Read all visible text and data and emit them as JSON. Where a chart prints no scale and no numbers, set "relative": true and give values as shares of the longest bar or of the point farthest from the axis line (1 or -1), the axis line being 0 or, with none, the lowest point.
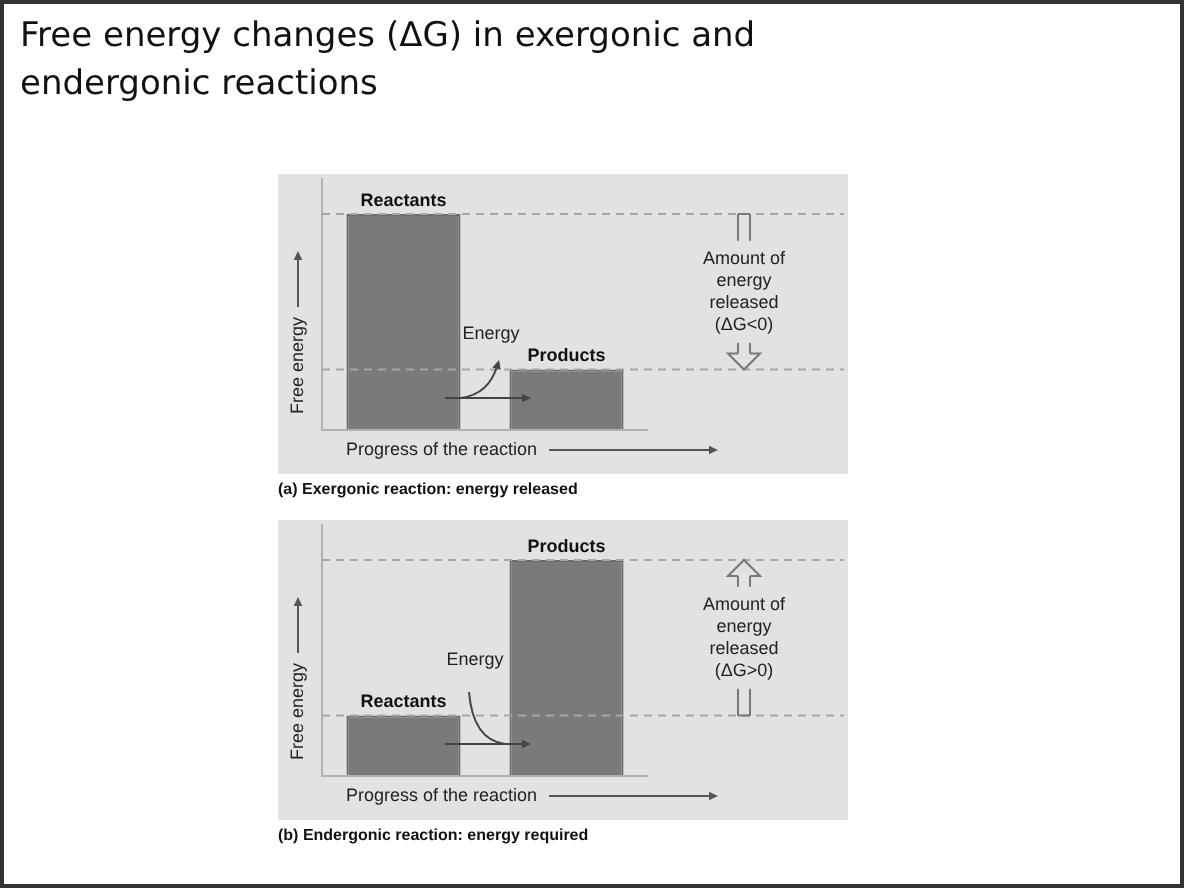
{
  "chart_data": [
    {
      "type": "bar",
      "title": "Free energy changes (ΔG) in exergonic and endergonic reactions",
      "categories": [
        "Reactants",
        "Products"
      ],
      "values": [
        1,
        0.28
      ],
      "color": "#7a7a7a",
      "relative": true,
      "xlabel": "Progress of the reaction",
      "ylabel": "Free energy",
      "legend": false,
      "annotations": [
        "Energy",
        "Amount of energy released (ΔG<0)",
        "(a) Exergonic reaction: energy released"
      ],
      "ref_lines": [
        {
          "axis": "y",
          "value": 1,
          "color": "#a6a6a6",
          "line_style": "dashed"
        },
        {
          "axis": "y",
          "value": 0.28,
          "color": "#a6a6a6",
          "line_style": "dashed"
        }
      ]
    },
    {
      "type": "bar",
      "categories": [
        "Reactants",
        "Products"
      ],
      "values": [
        0.28,
        1
      ],
      "color": "#7a7a7a",
      "relative": true,
      "xlabel": "Progress of the reaction",
      "ylabel": "Free energy",
      "legend": false,
      "annotations": [
        "Energy",
        "Amount of energy released (ΔG>0)",
        "(b) Endergonic reaction: energy required"
      ],
      "ref_lines": [
        {
          "axis": "y",
          "value": 0.28,
          "color": "#a6a6a6",
          "line_style": "dashed"
        },
        {
          "axis": "y",
          "value": 1,
          "color": "#a6a6a6",
          "line_style": "dashed"
        }
      ]
    }
  ]
}
